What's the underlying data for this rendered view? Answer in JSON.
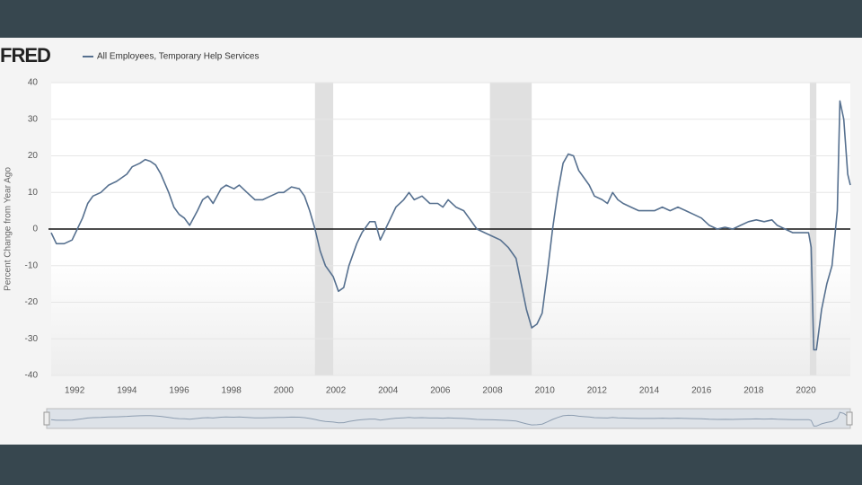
{
  "chart_data": {
    "type": "line",
    "logo": "FRED",
    "ylabel": "Percent Change from Year Ago",
    "xlim": [
      1991.1,
      2021.7
    ],
    "ylim": [
      -40,
      40
    ],
    "xticks": [
      1992,
      1994,
      1996,
      1998,
      2000,
      2002,
      2004,
      2006,
      2008,
      2010,
      2012,
      2014,
      2016,
      2018,
      2020
    ],
    "yticks": [
      -40,
      -30,
      -20,
      -10,
      0,
      10,
      20,
      30,
      40
    ],
    "grid": true,
    "recessions": [
      [
        2001.2,
        2001.9
      ],
      [
        2007.9,
        2009.5
      ],
      [
        2020.15,
        2020.4
      ]
    ],
    "series": [
      {
        "name": "All Employees, Temporary Help Services",
        "color": "#56708f",
        "x": [
          1991.1,
          1991.3,
          1991.6,
          1991.9,
          1992.1,
          1992.3,
          1992.5,
          1992.7,
          1993.0,
          1993.3,
          1993.6,
          1994.0,
          1994.2,
          1994.5,
          1994.7,
          1994.9,
          1995.1,
          1995.3,
          1995.6,
          1995.8,
          1996.0,
          1996.2,
          1996.4,
          1996.7,
          1996.9,
          1997.1,
          1997.3,
          1997.6,
          1997.8,
          1998.1,
          1998.3,
          1998.6,
          1998.9,
          1999.2,
          1999.5,
          1999.8,
          2000.0,
          2000.3,
          2000.6,
          2000.8,
          2001.0,
          2001.2,
          2001.4,
          2001.6,
          2001.9,
          2002.1,
          2002.3,
          2002.5,
          2002.8,
          2003.0,
          2003.3,
          2003.5,
          2003.7,
          2003.9,
          2004.1,
          2004.3,
          2004.6,
          2004.8,
          2005.0,
          2005.3,
          2005.6,
          2005.9,
          2006.1,
          2006.3,
          2006.6,
          2006.9,
          2007.1,
          2007.4,
          2007.7,
          2008.0,
          2008.3,
          2008.6,
          2008.9,
          2009.1,
          2009.3,
          2009.5,
          2009.7,
          2009.9,
          2010.1,
          2010.3,
          2010.5,
          2010.7,
          2010.9,
          2011.1,
          2011.3,
          2011.5,
          2011.7,
          2011.9,
          2012.2,
          2012.4,
          2012.6,
          2012.8,
          2013.0,
          2013.3,
          2013.6,
          2013.9,
          2014.2,
          2014.5,
          2014.8,
          2015.1,
          2015.4,
          2015.7,
          2016.0,
          2016.3,
          2016.6,
          2016.9,
          2017.2,
          2017.5,
          2017.8,
          2018.1,
          2018.4,
          2018.7,
          2018.9,
          2019.2,
          2019.5,
          2019.8,
          2020.1,
          2020.2,
          2020.3,
          2020.4,
          2020.6,
          2020.8,
          2021.0,
          2021.2,
          2021.3,
          2021.45,
          2021.6,
          2021.7
        ],
        "values": [
          -1,
          -4,
          -4,
          -3,
          0,
          3,
          7,
          9,
          10,
          12,
          13,
          15,
          17,
          18,
          19,
          18.5,
          17.5,
          15,
          10,
          6,
          4,
          3,
          1,
          5,
          8,
          9,
          7,
          11,
          12,
          11,
          12,
          10,
          8,
          8,
          9,
          10,
          10,
          11.5,
          11,
          9,
          5,
          0,
          -6,
          -10,
          -13,
          -17,
          -16,
          -10,
          -4,
          -1,
          2,
          2,
          -3,
          0,
          3,
          6,
          8,
          10,
          8,
          9,
          7,
          7,
          6,
          8,
          6,
          5,
          3,
          0,
          -1,
          -2,
          -3,
          -5,
          -8,
          -15,
          -22,
          -27,
          -26,
          -23,
          -12,
          0,
          10,
          18,
          20.5,
          20,
          16,
          14,
          12,
          9,
          8,
          7,
          10,
          8,
          7,
          6,
          5,
          5,
          5,
          6,
          5,
          6,
          5,
          4,
          3,
          1,
          0,
          0.5,
          0,
          1,
          2,
          2.5,
          2,
          2.5,
          1,
          0,
          -1,
          -1,
          -1,
          -5,
          -33,
          -33,
          -22,
          -15,
          -10,
          5,
          35,
          30,
          15,
          12
        ]
      }
    ]
  }
}
